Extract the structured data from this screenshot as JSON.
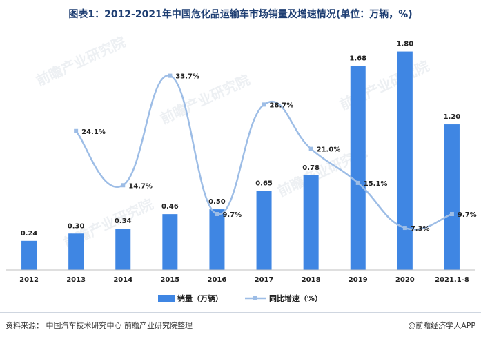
{
  "title": "图表1：2012-2021年中国危化品运输车市场销量及增速情况(单位：万辆，%)",
  "source": "资料来源：  中国汽车技术研究中心 前瞻产业研究院整理",
  "brand": "@前瞻经济学人APP",
  "watermark": "前瞻产业研究院",
  "colors": {
    "bar": "#3f86e3",
    "line": "#9dbde6",
    "title": "#1f3f73"
  },
  "chart_data": {
    "type": "bar",
    "categories": [
      "2012",
      "2013",
      "2014",
      "2015",
      "2016",
      "2017",
      "2018",
      "2019",
      "2020",
      "2021.1-8"
    ],
    "series": [
      {
        "name": "销量（万辆）",
        "type": "bar",
        "values": [
          0.24,
          0.3,
          0.34,
          0.46,
          0.5,
          0.65,
          0.78,
          1.68,
          1.8,
          1.2
        ],
        "labels": [
          "0.24",
          "0.30",
          "0.34",
          "0.46",
          "0.50",
          "0.65",
          "0.78",
          "1.68",
          "1.80",
          "1.20"
        ]
      },
      {
        "name": "同比增速（%）",
        "type": "line",
        "axis": "secondary",
        "values": [
          null,
          24.1,
          14.7,
          33.7,
          9.7,
          28.7,
          21.0,
          15.1,
          7.3,
          9.7
        ],
        "labels": [
          "",
          "24.1%",
          "14.7%",
          "33.7%",
          "9.7%",
          "28.7%",
          "21.0%",
          "15.1%",
          "7.3%",
          "9.7%"
        ]
      }
    ],
    "ylim": [
      0,
      1.9
    ],
    "y2lim": [
      0,
      40
    ],
    "legend": "bottom-center",
    "grid": false
  }
}
